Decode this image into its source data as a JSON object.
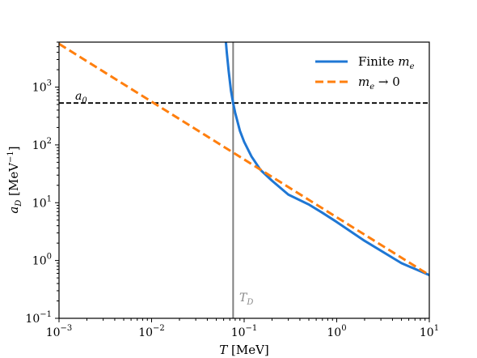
{
  "chart_data": {
    "type": "line",
    "title": "",
    "xlabel": "T [MeV]",
    "ylabel": "a_D [MeV^-1]",
    "xscale": "log",
    "yscale": "log",
    "xlim": [
      0.001,
      10
    ],
    "ylim": [
      0.1,
      6000
    ],
    "grid": false,
    "legend_position": "top-right",
    "x_ticks": [
      {
        "value": 0.001,
        "base": "10",
        "exp": "−3"
      },
      {
        "value": 0.01,
        "base": "10",
        "exp": "−2"
      },
      {
        "value": 0.1,
        "base": "10",
        "exp": "−1"
      },
      {
        "value": 1,
        "base": "10",
        "exp": "0"
      },
      {
        "value": 10,
        "base": "10",
        "exp": "1"
      }
    ],
    "y_ticks": [
      {
        "value": 0.1,
        "base": "10",
        "exp": "−1"
      },
      {
        "value": 1,
        "base": "10",
        "exp": "0"
      },
      {
        "value": 10,
        "base": "10",
        "exp": "1"
      },
      {
        "value": 100,
        "base": "10",
        "exp": "2"
      },
      {
        "value": 1000,
        "base": "10",
        "exp": "3"
      }
    ],
    "series": [
      {
        "name": "Finite m_e",
        "color": "#1f77d4",
        "style": "solid",
        "x": [
          0.0635,
          0.065,
          0.068,
          0.072,
          0.076,
          0.08,
          0.09,
          0.1,
          0.12,
          0.15,
          0.2,
          0.3,
          0.5,
          0.7,
          1,
          2,
          5,
          10
        ],
        "y": [
          6000,
          3900,
          1900,
          870,
          530,
          360,
          175,
          113,
          63,
          37,
          24,
          13.8,
          9.3,
          6.7,
          4.64,
          2.19,
          0.9,
          0.56
        ]
      },
      {
        "name": "m_e → 0",
        "color": "#ff7f0e",
        "style": "dashed",
        "x": [
          0.001,
          10
        ],
        "y": [
          5600,
          0.56
        ]
      }
    ],
    "annotations": [
      {
        "type": "hline",
        "y": 530,
        "label": "a_0",
        "color": "#000000",
        "style": "dashed"
      },
      {
        "type": "vline",
        "x": 0.076,
        "label": "T_D",
        "color": "#808080",
        "style": "solid"
      }
    ]
  }
}
